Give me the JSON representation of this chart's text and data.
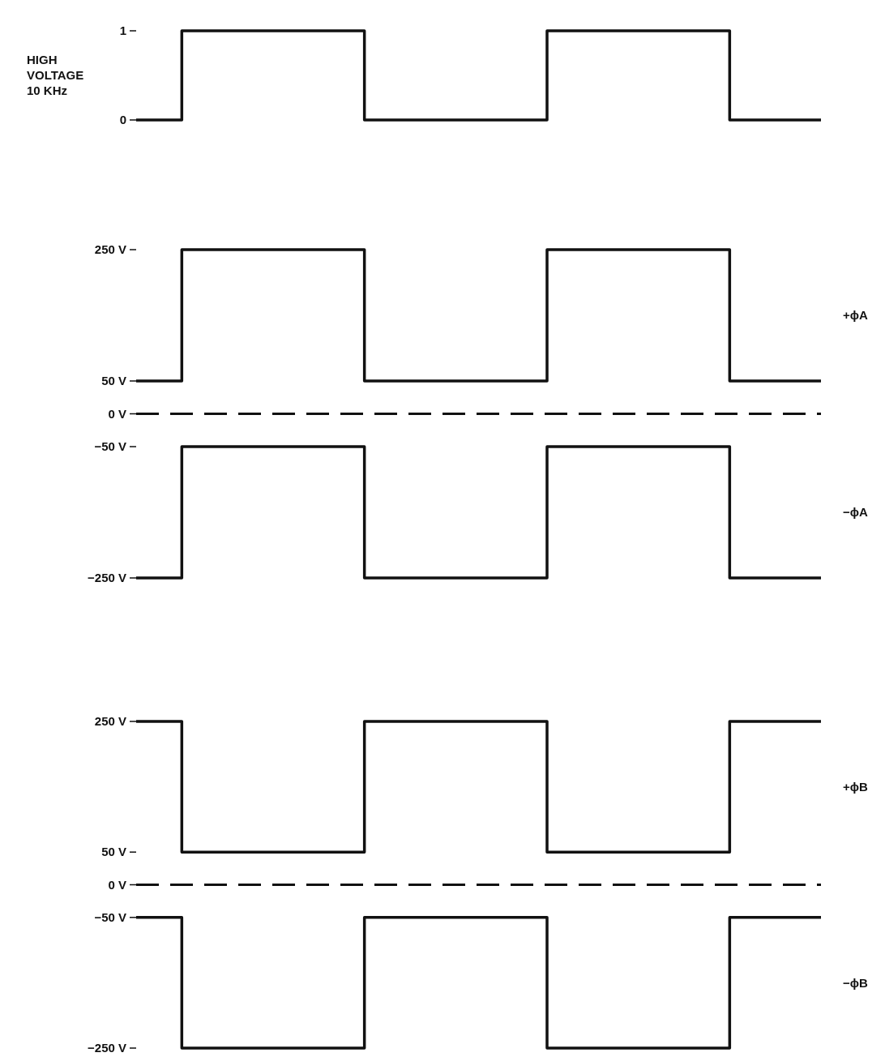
{
  "chart_data": [
    {
      "type": "step",
      "ylabel": "HIGH\nVOLTAGE\n10 KHz",
      "categories": [
        null,
        null,
        null,
        null,
        null,
        null,
        null,
        null,
        null,
        null,
        null,
        null,
        null,
        null,
        null,
        null
      ],
      "values": [
        0,
        1,
        1,
        1,
        1,
        0,
        0,
        0,
        0,
        1,
        1,
        1,
        1,
        0,
        0,
        0
      ],
      "color": "#111111",
      "ylim": [
        0,
        1
      ],
      "yticks": [
        0,
        1
      ],
      "tick_labels": "y",
      "line_style": "solid"
    },
    {
      "type": "step",
      "categories": [
        null,
        null,
        null,
        null,
        null,
        null,
        null,
        null,
        null,
        null,
        null,
        null,
        null,
        null,
        null,
        null
      ],
      "series": [
        {
          "name": "+ϕA",
          "color": "#111111",
          "values": [
            50,
            250,
            250,
            250,
            250,
            50,
            50,
            50,
            50,
            250,
            250,
            250,
            250,
            50,
            50,
            50
          ]
        },
        {
          "name": "−ϕA",
          "color": "#111111",
          "values": [
            -250,
            -50,
            -50,
            -50,
            -50,
            -250,
            -250,
            -250,
            -250,
            -50,
            -50,
            -50,
            -50,
            -250,
            -250,
            -250
          ]
        }
      ],
      "ylim": [
        -250,
        250
      ],
      "yticks": [
        {
          "value": -250,
          "label": "−250 V"
        },
        {
          "value": -50,
          "label": "−50 V"
        },
        {
          "value": 0,
          "label": "0 V"
        },
        {
          "value": 50,
          "label": "50 V"
        },
        {
          "value": 250,
          "label": "250 V"
        }
      ],
      "tick_labels": "y",
      "line_style": "solid",
      "ref_lines": [
        {
          "axis": "y",
          "value": 0,
          "line_style": "dashed",
          "color": "#111111"
        }
      ]
    },
    {
      "type": "step",
      "categories": [
        null,
        null,
        null,
        null,
        null,
        null,
        null,
        null,
        null,
        null,
        null,
        null,
        null,
        null,
        null,
        null
      ],
      "series": [
        {
          "name": "+ϕB",
          "color": "#111111",
          "values": [
            250,
            50,
            50,
            50,
            50,
            250,
            250,
            250,
            250,
            50,
            50,
            50,
            50,
            250,
            250,
            250
          ]
        },
        {
          "name": "−ϕB",
          "color": "#111111",
          "values": [
            -50,
            -250,
            -250,
            -250,
            -250,
            -50,
            -50,
            -50,
            -50,
            -250,
            -250,
            -250,
            -250,
            -50,
            -50,
            -50
          ]
        }
      ],
      "ylim": [
        -250,
        250
      ],
      "yticks": [
        {
          "value": -250,
          "label": "−250 V"
        },
        {
          "value": -50,
          "label": "−50 V"
        },
        {
          "value": 0,
          "label": "0 V"
        },
        {
          "value": 50,
          "label": "50 V"
        },
        {
          "value": 250,
          "label": "250 V"
        }
      ],
      "tick_labels": "y",
      "line_style": "solid",
      "ref_lines": [
        {
          "axis": "y",
          "value": 0,
          "line_style": "dashed",
          "color": "#111111"
        }
      ]
    }
  ]
}
